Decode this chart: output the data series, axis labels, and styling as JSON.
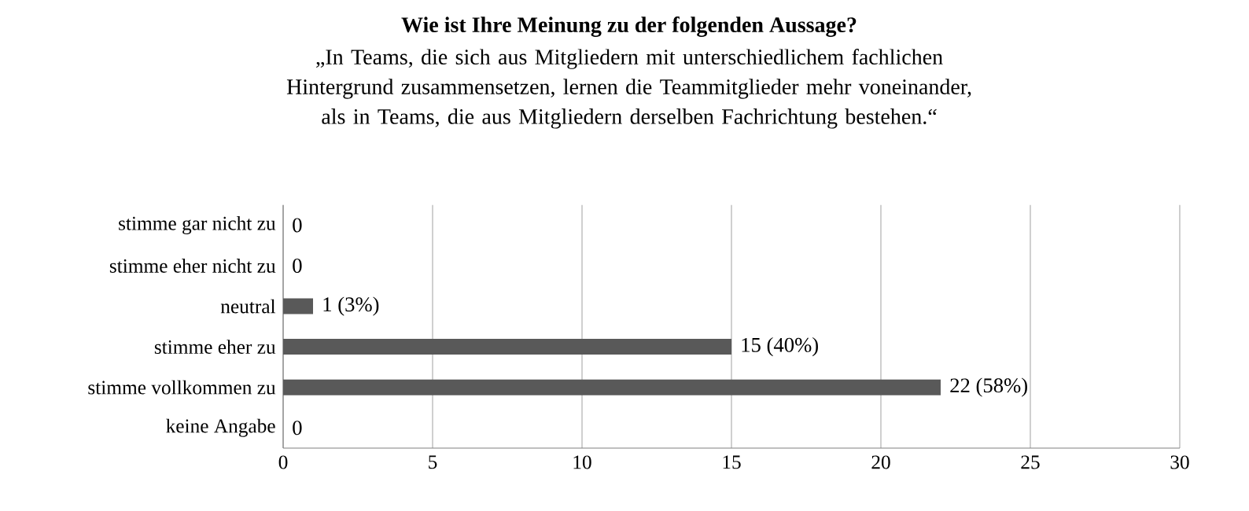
{
  "chart_data": {
    "type": "bar",
    "orientation": "horizontal",
    "title": "Wie ist Ihre Meinung zu der folgenden Aussage?",
    "subtitle": "„In Teams, die sich aus Mitgliedern mit unterschiedlichem fachlichen Hintergrund zusammensetzen, lernen die Teammitglieder mehr voneinander, als in Teams, die aus Mitgliedern derselben Fachrichtung bestehen.“",
    "categories": [
      "stimme gar nicht zu",
      "stimme eher nicht zu",
      "neutral",
      "stimme eher zu",
      "stimme vollkommen zu",
      "keine Angabe"
    ],
    "values": [
      0,
      0,
      1,
      15,
      22,
      0
    ],
    "value_labels": [
      "0",
      "0",
      "1 (3%)",
      "15 (40%)",
      "22 (58%)",
      "0"
    ],
    "color": "#595959",
    "xlim": [
      0,
      30
    ],
    "xticks": [
      0,
      5,
      10,
      15,
      20,
      25,
      30
    ],
    "grid": "x"
  }
}
